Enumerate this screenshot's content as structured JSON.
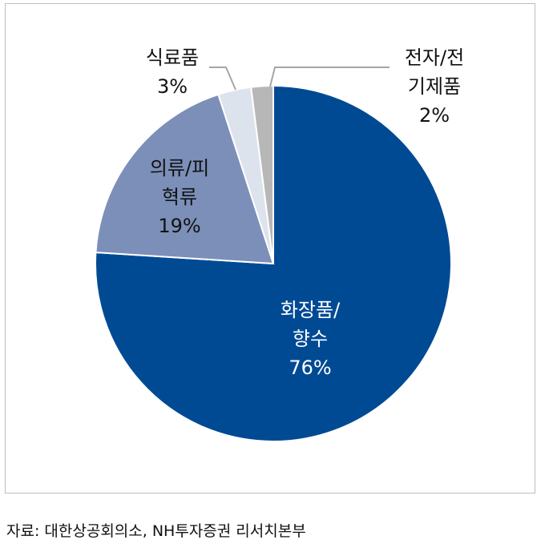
{
  "chart_data": {
    "type": "pie",
    "slices": [
      {
        "label_lines": [
          "화장품/",
          "향수"
        ],
        "value": 76,
        "value_label": "76%",
        "color": "#004a94",
        "text_color": "#ffffff"
      },
      {
        "label_lines": [
          "의류/피",
          "혁류"
        ],
        "value": 19,
        "value_label": "19%",
        "color": "#7b8fb8",
        "text_color": "#111111"
      },
      {
        "label_lines": [
          "식료품"
        ],
        "value": 3,
        "value_label": "3%",
        "color": "#dde3ec",
        "text_color": "#111111"
      },
      {
        "label_lines": [
          "전자/전",
          "기제품"
        ],
        "value": 2,
        "value_label": "2%",
        "color": "#b7b7b7",
        "text_color": "#111111"
      }
    ]
  },
  "source": "자료: 대한상공회의소, NH투자증권 리서치본부"
}
